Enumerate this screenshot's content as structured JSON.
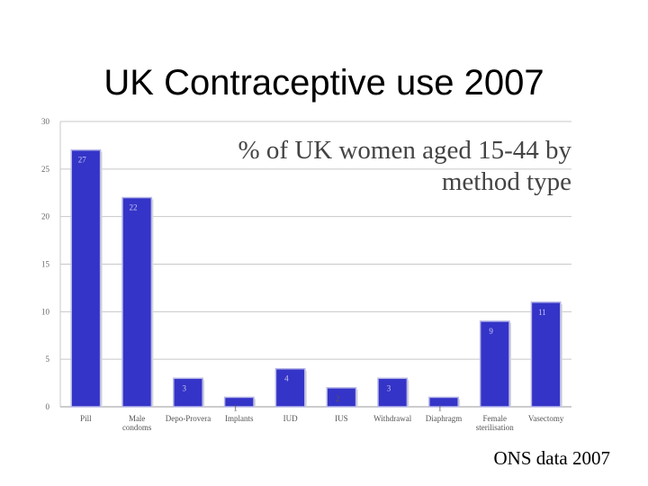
{
  "slide": {
    "title": "UK Contraceptive use 2007",
    "source": "ONS data 2007"
  },
  "chart_data": {
    "type": "bar",
    "title": "% of UK women aged 15-44 by method type",
    "title_lines": [
      "% of UK women aged 15-44 by",
      "method type"
    ],
    "xlabel": "",
    "ylabel": "",
    "ylim": [
      0,
      30
    ],
    "yticks": [
      0,
      5,
      10,
      15,
      20,
      25,
      30
    ],
    "grid": true,
    "categories": [
      "Pill",
      "Male condoms",
      "Depo-Provera",
      "Implants",
      "IUD",
      "IUS",
      "Withdrawal",
      "Diaphragm",
      "Female sterilisation",
      "Vasectomy"
    ],
    "category_lines": [
      [
        "Pill"
      ],
      [
        "Male",
        "condoms"
      ],
      [
        "Depo-Provera"
      ],
      [
        "Implants"
      ],
      [
        "IUD"
      ],
      [
        "IUS"
      ],
      [
        "Withdrawal"
      ],
      [
        "Diaphragm"
      ],
      [
        "Female",
        "sterilisation"
      ],
      [
        "Vasectomy"
      ]
    ],
    "values": [
      27,
      22,
      3,
      1,
      4,
      2,
      3,
      1,
      9,
      11
    ],
    "bar_color": "#3434c8"
  }
}
